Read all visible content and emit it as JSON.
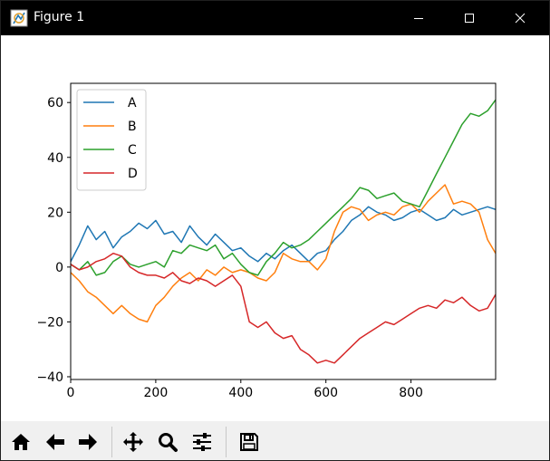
{
  "window": {
    "title": "Figure 1",
    "app_icon": "matplotlib-figure-icon",
    "controls": [
      "minimize-icon",
      "maximize-icon",
      "close-icon"
    ]
  },
  "toolbar": {
    "buttons": [
      "home-icon",
      "back-arrow-icon",
      "forward-arrow-icon",
      "pan-icon",
      "zoom-icon",
      "configure-subplots-icon",
      "save-icon"
    ]
  },
  "chart_data": {
    "type": "line",
    "xlim": [
      0,
      999
    ],
    "ylim": [
      -41,
      67
    ],
    "xticks": [
      0,
      200,
      400,
      600,
      800
    ],
    "yticks": [
      -40,
      -20,
      0,
      20,
      40,
      60
    ],
    "grid": false,
    "legend_position": "top-left",
    "series": [
      {
        "name": "A",
        "color": "#1f77b4",
        "x": [
          0,
          20,
          40,
          60,
          80,
          100,
          120,
          140,
          160,
          180,
          200,
          220,
          240,
          260,
          280,
          300,
          320,
          340,
          360,
          380,
          400,
          420,
          440,
          460,
          480,
          500,
          520,
          540,
          560,
          580,
          600,
          620,
          640,
          660,
          680,
          700,
          720,
          740,
          760,
          780,
          800,
          820,
          840,
          860,
          880,
          900,
          920,
          940,
          960,
          980,
          999
        ],
        "y": [
          2,
          8,
          15,
          10,
          13,
          7,
          11,
          13,
          16,
          14,
          17,
          12,
          13,
          9,
          15,
          11,
          8,
          12,
          9,
          6,
          7,
          4,
          2,
          5,
          3,
          6,
          8,
          5,
          2,
          5,
          6,
          10,
          13,
          17,
          19,
          22,
          20,
          19,
          17,
          18,
          20,
          21,
          19,
          17,
          18,
          21,
          19,
          20,
          21,
          22,
          21
        ]
      },
      {
        "name": "B",
        "color": "#ff7f0e",
        "x": [
          0,
          20,
          40,
          60,
          80,
          100,
          120,
          140,
          160,
          180,
          200,
          220,
          240,
          260,
          280,
          300,
          320,
          340,
          360,
          380,
          400,
          420,
          440,
          460,
          480,
          500,
          520,
          540,
          560,
          580,
          600,
          620,
          640,
          660,
          680,
          700,
          720,
          740,
          760,
          780,
          800,
          820,
          840,
          860,
          880,
          900,
          920,
          940,
          960,
          980,
          999
        ],
        "y": [
          -2,
          -5,
          -9,
          -11,
          -14,
          -17,
          -14,
          -17,
          -19,
          -20,
          -14,
          -11,
          -7,
          -4,
          -2,
          -5,
          -1,
          -3,
          0,
          -2,
          -1,
          -2,
          -4,
          -5,
          -2,
          5,
          3,
          2,
          2,
          -1,
          3,
          13,
          20,
          22,
          21,
          17,
          19,
          20,
          19,
          22,
          23,
          20,
          24,
          27,
          30,
          23,
          24,
          23,
          20,
          10,
          5
        ]
      },
      {
        "name": "C",
        "color": "#2ca02c",
        "x": [
          0,
          20,
          40,
          60,
          80,
          100,
          120,
          140,
          160,
          180,
          200,
          220,
          240,
          260,
          280,
          300,
          320,
          340,
          360,
          380,
          400,
          420,
          440,
          460,
          480,
          500,
          520,
          540,
          560,
          580,
          600,
          620,
          640,
          660,
          680,
          700,
          720,
          740,
          760,
          780,
          800,
          820,
          840,
          860,
          880,
          900,
          920,
          940,
          960,
          980,
          999
        ],
        "y": [
          1,
          -1,
          2,
          -3,
          -2,
          2,
          4,
          1,
          0,
          1,
          2,
          0,
          6,
          5,
          8,
          7,
          6,
          8,
          3,
          5,
          1,
          -2,
          -3,
          2,
          5,
          9,
          7,
          8,
          10,
          13,
          16,
          19,
          22,
          25,
          29,
          28,
          25,
          26,
          27,
          24,
          23,
          22,
          28,
          34,
          40,
          46,
          52,
          56,
          55,
          57,
          61
        ]
      },
      {
        "name": "D",
        "color": "#d62728",
        "x": [
          0,
          20,
          40,
          60,
          80,
          100,
          120,
          140,
          160,
          180,
          200,
          220,
          240,
          260,
          280,
          300,
          320,
          340,
          360,
          380,
          400,
          420,
          440,
          460,
          480,
          500,
          520,
          540,
          560,
          580,
          600,
          620,
          640,
          660,
          680,
          700,
          720,
          740,
          760,
          780,
          800,
          820,
          840,
          860,
          880,
          900,
          920,
          940,
          960,
          980,
          999
        ],
        "y": [
          1,
          -1,
          0,
          2,
          3,
          5,
          4,
          0,
          -2,
          -3,
          -3,
          -4,
          -2,
          -5,
          -6,
          -4,
          -5,
          -7,
          -5,
          -3,
          -7,
          -20,
          -22,
          -20,
          -24,
          -26,
          -25,
          -30,
          -32,
          -35,
          -34,
          -35,
          -32,
          -29,
          -26,
          -24,
          -22,
          -20,
          -21,
          -19,
          -17,
          -15,
          -14,
          -15,
          -12,
          -13,
          -11,
          -14,
          -16,
          -15,
          -10
        ]
      }
    ]
  }
}
